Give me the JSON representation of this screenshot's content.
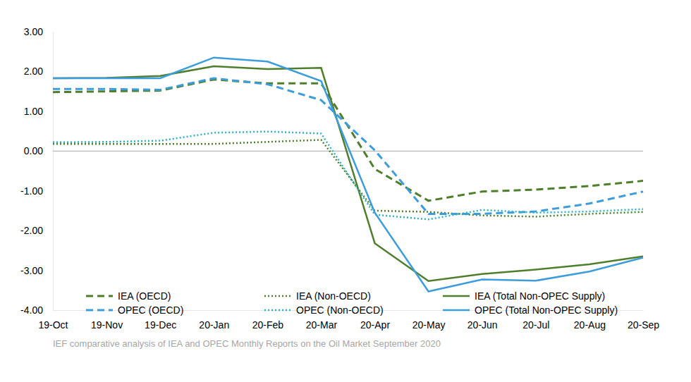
{
  "chart_data": {
    "type": "line",
    "categories": [
      "19-Oct",
      "19-Nov",
      "19-Dec",
      "20-Jan",
      "20-Feb",
      "20-Mar",
      "20-Apr",
      "20-May",
      "20-Jun",
      "20-Jul",
      "20-Aug",
      "20-Sep"
    ],
    "series": [
      {
        "name": "IEA (OECD)",
        "color": "#4f7f2c",
        "line_style": "dashed",
        "values": [
          1.48,
          1.5,
          1.52,
          1.8,
          1.7,
          1.7,
          -0.45,
          -1.25,
          -1.02,
          -0.97,
          -0.88,
          -0.75
        ]
      },
      {
        "name": "IEA (Non-OECD)",
        "color": "#4f7f2c",
        "line_style": "dotted",
        "values": [
          0.18,
          0.18,
          0.18,
          0.18,
          0.23,
          0.28,
          -1.5,
          -1.53,
          -1.62,
          -1.65,
          -1.58,
          -1.53
        ]
      },
      {
        "name": "IEA (Total Non-OPEC Supply)",
        "color": "#4f7f2c",
        "line_style": "solid",
        "values": [
          1.83,
          1.84,
          1.89,
          2.13,
          2.06,
          2.09,
          -2.32,
          -3.27,
          -3.09,
          -2.98,
          -2.85,
          -2.65
        ]
      },
      {
        "name": "OPEC (OECD)",
        "color": "#3d9ddc",
        "line_style": "dashed",
        "values": [
          1.56,
          1.56,
          1.54,
          1.83,
          1.68,
          1.28,
          0.02,
          -1.58,
          -1.58,
          -1.52,
          -1.32,
          -1.02
        ]
      },
      {
        "name": "OPEC (Non-OECD)",
        "color": "#2fb1bf",
        "line_style": "dotted",
        "values": [
          0.22,
          0.23,
          0.26,
          0.46,
          0.49,
          0.44,
          -1.6,
          -1.72,
          -1.48,
          -1.55,
          -1.52,
          -1.46
        ]
      },
      {
        "name": "OPEC (Total Non-OPEC Supply)",
        "color": "#3d9ddc",
        "line_style": "solid",
        "values": [
          1.83,
          1.83,
          1.83,
          2.35,
          2.25,
          1.76,
          -1.55,
          -3.53,
          -3.23,
          -3.26,
          -3.03,
          -2.68
        ]
      }
    ],
    "ylim": [
      -4,
      3
    ],
    "yticks": [
      {
        "value": -4,
        "label": "-4.00"
      },
      {
        "value": -3,
        "label": "-3.00"
      },
      {
        "value": -2,
        "label": "-2.00"
      },
      {
        "value": -1,
        "label": "-1.00"
      },
      {
        "value": 0,
        "label": "0.00"
      },
      {
        "value": 1,
        "label": "1.00"
      },
      {
        "value": 2,
        "label": "2.00"
      },
      {
        "value": 3,
        "label": "3.00"
      }
    ],
    "grid": false,
    "legend": "bottom",
    "annotations": [
      "IEF comparative analysis of IEA and OPEC Monthly Reports on the Oil Market September 2020"
    ]
  }
}
